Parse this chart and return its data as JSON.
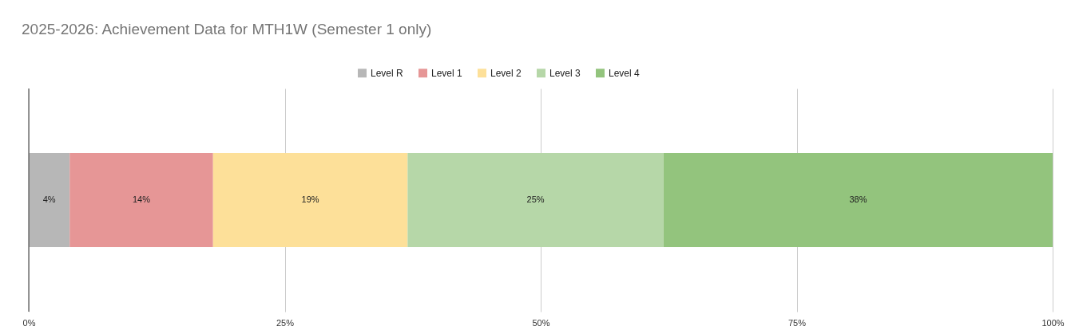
{
  "chart_data": {
    "type": "bar",
    "title": "2025-2026: Achievement Data for MTH1W (Semester 1 only)",
    "orientation": "horizontal",
    "stacked": true,
    "categories": [
      null
    ],
    "series": [
      {
        "name": "Level R",
        "color": "#b7b7b7",
        "values": [
          4
        ],
        "value_labels": [
          "4%"
        ]
      },
      {
        "name": "Level 1",
        "color": "#e69696",
        "values": [
          14
        ],
        "value_labels": [
          "14%"
        ]
      },
      {
        "name": "Level 2",
        "color": "#fde099",
        "values": [
          19
        ],
        "value_labels": [
          "19%"
        ]
      },
      {
        "name": "Level 3",
        "color": "#b6d7a8",
        "values": [
          25
        ],
        "value_labels": [
          "25%"
        ]
      },
      {
        "name": "Level 4",
        "color": "#93c47d",
        "values": [
          38
        ],
        "value_labels": [
          "38%"
        ]
      }
    ],
    "xlim": [
      0,
      100
    ],
    "xticks": [
      {
        "value": 0,
        "label": "0%"
      },
      {
        "value": 25,
        "label": "25%"
      },
      {
        "value": 50,
        "label": "50%"
      },
      {
        "value": 75,
        "label": "75%"
      },
      {
        "value": 100,
        "label": "100%"
      }
    ],
    "grid": "x",
    "legend": "top"
  }
}
